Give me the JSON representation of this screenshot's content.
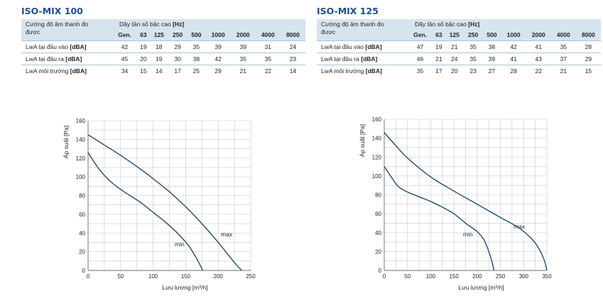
{
  "tables": [
    {
      "model": "ISO-MIX 100",
      "header_label": "Cường độ âm thanh đo được",
      "freq_title": "Dãy tần số bậc cao",
      "freq_unit": "[Hz]",
      "columns": [
        "Gen.",
        "63",
        "125",
        "250",
        "500",
        "1000",
        "2000",
        "4000",
        "8000"
      ],
      "rows": [
        {
          "label": "LwA tại đầu vào",
          "unit": "[dBA]",
          "values": [
            "42",
            "19",
            "18",
            "29",
            "35",
            "39",
            "39",
            "31",
            "24"
          ]
        },
        {
          "label": "LwA tại đầu ra",
          "unit": "[dBA]",
          "values": [
            "45",
            "20",
            "19",
            "30",
            "38",
            "42",
            "35",
            "35",
            "23"
          ]
        },
        {
          "label": "LwA môi trường",
          "unit": "[dBA]",
          "values": [
            "34",
            "15",
            "14",
            "17",
            "25",
            "29",
            "21",
            "22",
            "14"
          ]
        }
      ]
    },
    {
      "model": "ISO-MIX 125",
      "header_label": "Cường độ âm thanh đo được",
      "freq_title": "Dãy tần số bậc cao",
      "freq_unit": "[Hz]",
      "columns": [
        "Gen.",
        "63",
        "125",
        "250",
        "500",
        "1000",
        "2000",
        "4000",
        "8000"
      ],
      "rows": [
        {
          "label": "LwA tại đầu vào",
          "unit": "[dBA]",
          "values": [
            "47",
            "19",
            "21",
            "35",
            "38",
            "42",
            "41",
            "35",
            "28"
          ]
        },
        {
          "label": "LwA tại đầu ra",
          "unit": "[dBA]",
          "values": [
            "46",
            "21",
            "24",
            "35",
            "39",
            "41",
            "43",
            "37",
            "29"
          ]
        },
        {
          "label": "LwA môi trường",
          "unit": "[dBA]",
          "values": [
            "35",
            "17",
            "20",
            "23",
            "27",
            "28",
            "22",
            "21",
            "15"
          ]
        }
      ]
    }
  ],
  "chart_data": [
    {
      "type": "line",
      "xlabel": "Lưu lượng [m³/h]",
      "ylabel": "Áp suất [Pa]",
      "xlim": [
        0,
        250
      ],
      "ylim": [
        0,
        160
      ],
      "xticks": [
        0,
        50,
        100,
        150,
        200,
        250
      ],
      "yticks": [
        0,
        20,
        40,
        60,
        80,
        100,
        120,
        140,
        160
      ],
      "grid": true,
      "line_color": "#1f4e79",
      "series": [
        {
          "name": "max",
          "x": [
            0,
            25,
            50,
            75,
            100,
            125,
            150,
            175,
            200,
            215,
            228,
            236
          ],
          "y": [
            145,
            134,
            123,
            111,
            98,
            84,
            68,
            50,
            30,
            17,
            6,
            0
          ]
        },
        {
          "name": "min",
          "x": [
            0,
            15,
            30,
            45,
            60,
            80,
            100,
            120,
            140,
            155,
            165,
            172,
            176
          ],
          "y": [
            126,
            110,
            98,
            89,
            82,
            73,
            62,
            51,
            38,
            26,
            15,
            6,
            0
          ]
        }
      ]
    },
    {
      "type": "line",
      "xlabel": "Lưu lượng [m³/h]",
      "ylabel": "Áp suất [Pa]",
      "xlim": [
        0,
        350
      ],
      "ylim": [
        0,
        160
      ],
      "xticks": [
        0,
        50,
        100,
        150,
        200,
        250,
        300,
        350
      ],
      "yticks": [
        0,
        20,
        40,
        60,
        80,
        100,
        120,
        140,
        160
      ],
      "grid": true,
      "line_color": "#1f4e79",
      "series": [
        {
          "name": "max",
          "x": [
            0,
            25,
            50,
            100,
            150,
            200,
            250,
            290,
            320,
            335,
            345,
            350
          ],
          "y": [
            146,
            132,
            119,
            99,
            84,
            70,
            56,
            45,
            32,
            21,
            10,
            0
          ]
        },
        {
          "name": "min",
          "x": [
            0,
            15,
            30,
            50,
            75,
            100,
            125,
            150,
            175,
            200,
            215,
            225,
            232,
            236
          ],
          "y": [
            110,
            99,
            89,
            83,
            78,
            73,
            67,
            60,
            50,
            41,
            32,
            20,
            9,
            0
          ]
        }
      ]
    }
  ]
}
